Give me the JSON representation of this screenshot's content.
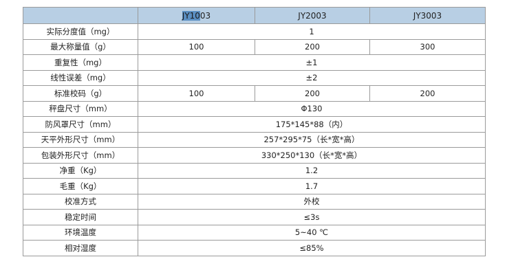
{
  "header": {
    "blank": "",
    "models": [
      "JY1003",
      "JY2003",
      "JY3003"
    ],
    "model1_selected_part": "JY10",
    "model1_rest": "03",
    "bg_color": "#b8cfe4"
  },
  "rows": [
    {
      "label": "实际分度值（mg）",
      "span": "1"
    },
    {
      "label": "最大称量值（g）",
      "values": [
        "100",
        "200",
        "300"
      ]
    },
    {
      "label": "重复性（mg）",
      "span": "±1"
    },
    {
      "label": "线性误差（mg）",
      "span": "±2"
    },
    {
      "label": "标准校码（g）",
      "values": [
        "100",
        "200",
        "200"
      ]
    },
    {
      "label": "秤盘尺寸（mm）",
      "span": "Φ130"
    },
    {
      "label": "防风罩尺寸（mm）",
      "span": "175*145*88（内）"
    },
    {
      "label": "天平外形尺寸（mm）",
      "span": "257*295*75（长*宽*高）"
    },
    {
      "label": "包装外形尺寸（mm）",
      "span": "330*250*130（长*宽*高）"
    },
    {
      "label": "净重（Kg）",
      "span": "1.2"
    },
    {
      "label": "毛重（Kg）",
      "span": "1.7"
    },
    {
      "label": "校准方式",
      "span": "外校"
    },
    {
      "label": "稳定时间",
      "span": "≤3s"
    },
    {
      "label": "环境温度",
      "span": "5~40 ℃"
    },
    {
      "label": "相对湿度",
      "span": "≤85%"
    }
  ]
}
